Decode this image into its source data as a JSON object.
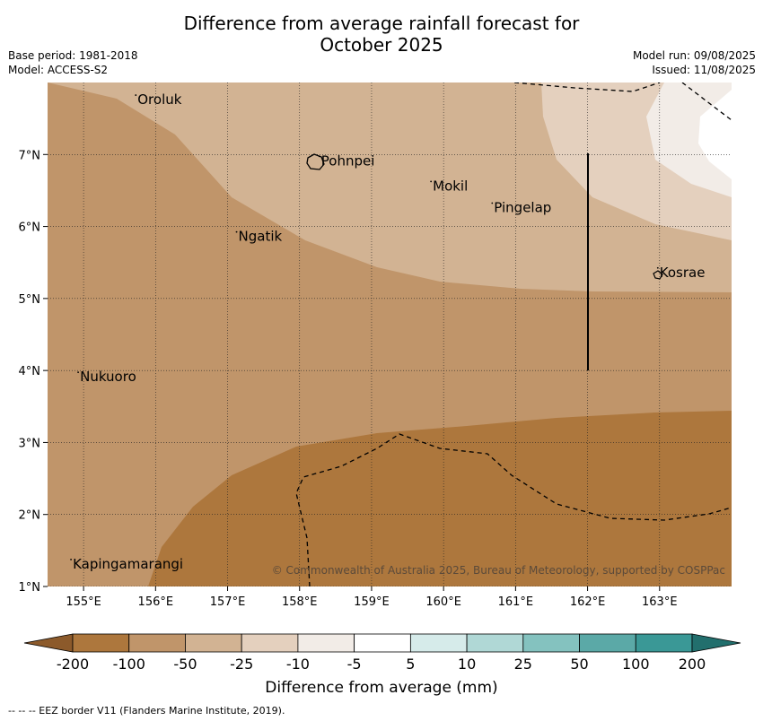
{
  "title_line1": "Difference from average rainfall forecast for",
  "title_line2": "October 2025",
  "meta_left": [
    "Base period: 1981-2018",
    "Model: ACCESS-S2"
  ],
  "meta_right": [
    "Model run: 09/08/2025",
    "Issued: 11/08/2025"
  ],
  "copyright": "© Commonwealth of Australia 2025, Bureau of Meteorology, supported by COSPPac",
  "footer": "--  --  -- EEZ border V11 (Flanders Marine Institute, 2019).",
  "map": {
    "lon_range": [
      154.5,
      164.0
    ],
    "lat_range": [
      1.0,
      8.0
    ],
    "lon_ticks": [
      "155°E",
      "156°E",
      "157°E",
      "158°E",
      "159°E",
      "160°E",
      "161°E",
      "162°E",
      "163°E"
    ],
    "lat_ticks": [
      "1°N",
      "2°N",
      "3°N",
      "4°N",
      "5°N",
      "6°N",
      "7°N"
    ],
    "places": [
      {
        "name": "Oroluk",
        "lon": 155.75,
        "lat": 7.7
      },
      {
        "name": "Pohnpei",
        "lon": 158.3,
        "lat": 6.85
      },
      {
        "name": "Mokil",
        "lon": 159.85,
        "lat": 6.5
      },
      {
        "name": "Pingelap",
        "lon": 160.7,
        "lat": 6.2
      },
      {
        "name": "Ngatik",
        "lon": 157.15,
        "lat": 5.8
      },
      {
        "name": "Kosrae",
        "lon": 163.0,
        "lat": 5.3
      },
      {
        "name": "Nukuoro",
        "lon": 154.95,
        "lat": 3.85
      },
      {
        "name": "Kapingamarangi",
        "lon": 154.85,
        "lat": 1.25
      }
    ]
  },
  "legend": {
    "title": "Difference from average (mm)",
    "ticks": [
      "-200",
      "-100",
      "-50",
      "-25",
      "-10",
      "-5",
      "5",
      "10",
      "25",
      "50",
      "100",
      "200"
    ],
    "colors": [
      "#8c5a2b",
      "#ad773d",
      "#c0956a",
      "#d2b393",
      "#e4d0be",
      "#f2ece7",
      "#ffffff",
      "#d6ebea",
      "#b0d8d6",
      "#84c2bf",
      "#5ba9a7",
      "#3a9896",
      "#226f6d"
    ]
  }
}
